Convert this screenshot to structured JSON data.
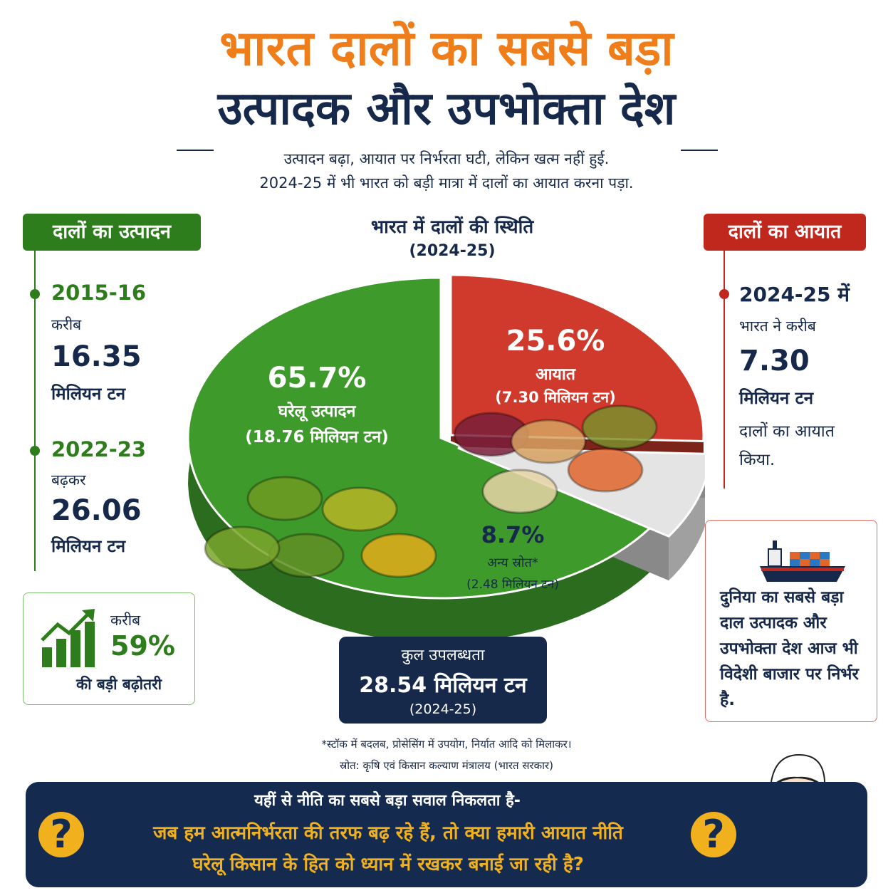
{
  "header": {
    "title_line1": "भारत दालों का सबसे बड़ा",
    "title_line2": "उत्पादक और उपभोक्ता देश",
    "subtitle_line1": "उत्पादन बढ़ा, आयात पर निर्भरता घटी, लेकिन खत्म नहीं हुई.",
    "subtitle_line2": "2024-25 में भी भारत को बड़ी मात्रा में दालों का आयात करना पड़ा."
  },
  "production": {
    "heading": "दालों का उत्पादन",
    "entries": [
      {
        "year": "2015-16",
        "qualifier": "करीब",
        "value": "16.35",
        "unit": "मिलियन टन"
      },
      {
        "year": "2022-23",
        "qualifier": "बढ़कर",
        "value": "26.06",
        "unit": "मिलियन टन"
      }
    ],
    "growth": {
      "qualifier": "करीब",
      "percent": "59%",
      "text": "की बड़ी बढ़ोतरी"
    }
  },
  "imports": {
    "heading": "दालों का आयात",
    "year": "2024-25 में",
    "line1": "भारत ने करीब",
    "value": "7.30",
    "unit": "मिलियन टन",
    "line2": "दालों का आयात",
    "line3": "किया.",
    "callout": "दुनिया का सबसे बड़ा दाल उत्पादक और उपभोक्ता देश आज भी विदेशी बाजार पर निर्भर है."
  },
  "chart_data": {
    "type": "pie",
    "title": "भारत में दालों की स्थिति",
    "subtitle": "(2024-25)",
    "slices": [
      {
        "label": "घरेलू उत्पादन",
        "percent": 65.7,
        "percent_text": "65.7%",
        "value_text": "(18.76 मिलियन टन)",
        "value": 18.76,
        "color": "#3f9a2c"
      },
      {
        "label": "आयात",
        "percent": 25.6,
        "percent_text": "25.6%",
        "value_text": "(7.30 मिलियन टन)",
        "value": 7.3,
        "color": "#cf3a2c"
      },
      {
        "label": "अन्य स्रोत*",
        "percent": 8.7,
        "percent_text": "8.7%",
        "value_text": "(2.48 मिलियन टन)",
        "value": 2.48,
        "color": "#e4e4e4"
      }
    ]
  },
  "total": {
    "label": "कुल उपलब्धता",
    "value": "28.54 मिलियन टन",
    "year": "(2024-25)"
  },
  "footnote": {
    "note": "*स्टॉक में बदलब, प्रोसेसिंग में उपयोग, निर्यात आदि को मिलाकर।",
    "source": "स्रोत: कृषि एवं किसान कल्याण मंत्रालय (भारत सरकार)"
  },
  "banner": {
    "line1": "यहीं से नीति का सबसे बड़ा सवाल निकलता है-",
    "line2": "जब हम आत्मनिर्भरता की तरफ बढ़ रहे हैं, तो क्या हमारी आयात नीति",
    "line3": "घरेलू किसान के हित को ध्यान में रखकर बनाई जा रही है?",
    "qmark": "?"
  }
}
